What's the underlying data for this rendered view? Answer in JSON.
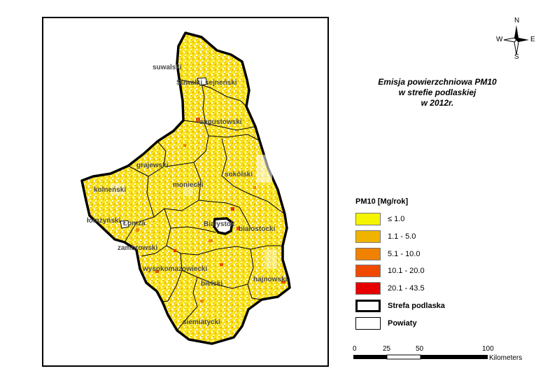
{
  "map": {
    "regions": [
      {
        "name": "suwalski"
      },
      {
        "name": "Suwałki"
      },
      {
        "name": "sejneński"
      },
      {
        "name": "augustowski"
      },
      {
        "name": "grajewski"
      },
      {
        "name": "moniecki"
      },
      {
        "name": "sokólski"
      },
      {
        "name": "kolneński"
      },
      {
        "name": "łomżyński"
      },
      {
        "name": "Łomża"
      },
      {
        "name": "Białystok"
      },
      {
        "name": "białostocki"
      },
      {
        "name": "zambrowski"
      },
      {
        "name": "wysokomazowiecki"
      },
      {
        "name": "hajnowski"
      },
      {
        "name": "bielski"
      },
      {
        "name": "siemiatycki"
      }
    ],
    "fill_colors": [
      "#f5ee00",
      "#f2b800",
      "#ee8a00"
    ]
  },
  "compass": {
    "n": "N",
    "s": "S",
    "w": "W",
    "e": "E"
  },
  "title": {
    "line1": "Emisja powierzchniowa PM10",
    "line2": "w strefie podlaskiej",
    "line3": "w 2012r."
  },
  "legend": {
    "title": "PM10 [Mg/rok]",
    "items": [
      {
        "label": "≤ 1.0",
        "color": "#f5f500"
      },
      {
        "label": "1.1 - 5.0",
        "color": "#f0b400"
      },
      {
        "label": "5.1 - 10.0",
        "color": "#f08200"
      },
      {
        "label": "10.1 - 20.0",
        "color": "#f04a00"
      },
      {
        "label": "20.1 - 43.5",
        "color": "#e60000"
      }
    ],
    "zone_label": "Strefa podlaska",
    "districts_label": "Powiaty"
  },
  "scale": {
    "ticks": [
      "0",
      "25",
      "50",
      "100"
    ],
    "unit": "Kilometers"
  }
}
